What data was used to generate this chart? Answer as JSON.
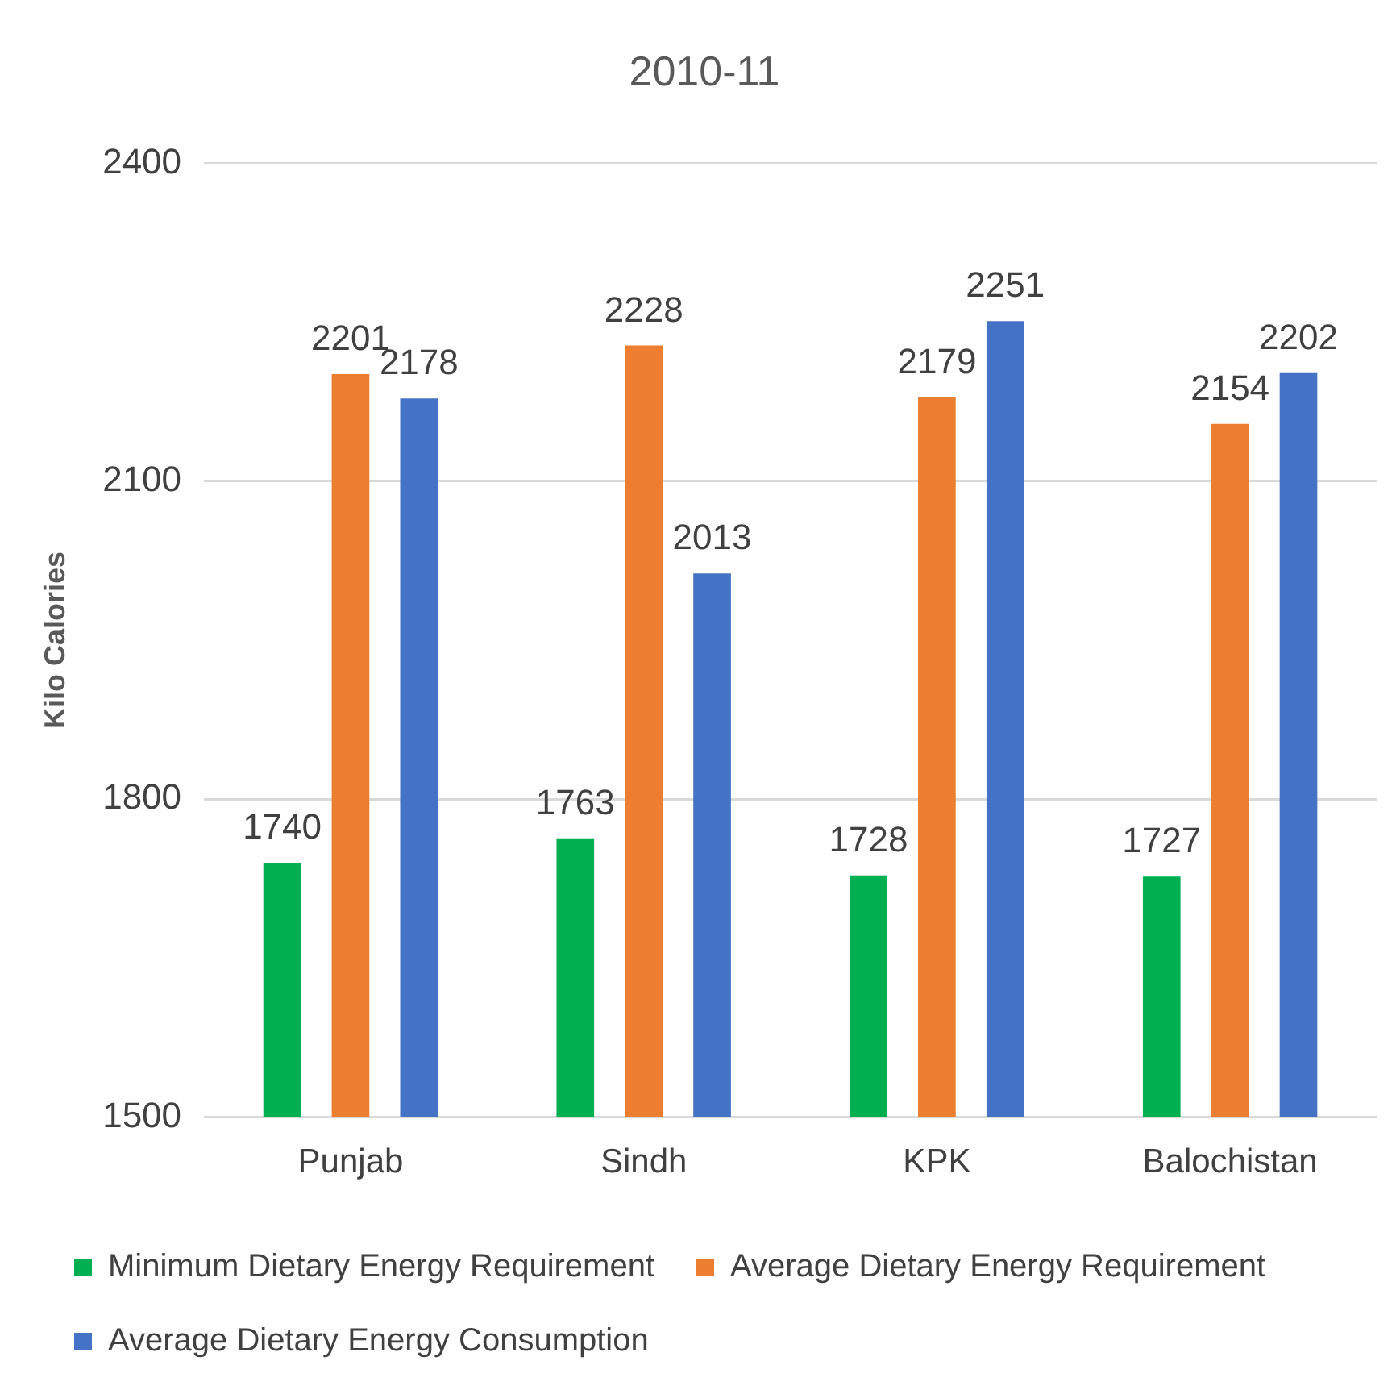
{
  "chart_data": {
    "type": "bar",
    "title": "2010-11",
    "ylabel": "Kilo Calories",
    "categories": [
      "Punjab",
      "Sindh",
      "KPK",
      "Balochistan"
    ],
    "series": [
      {
        "name": "Minimum Dietary Energy Requirement",
        "color": "#00b050",
        "values": [
          1740,
          1763,
          1728,
          1727
        ]
      },
      {
        "name": "Average Dietary Energy Requirement",
        "color": "#ed7d31",
        "values": [
          2201,
          2228,
          2179,
          2154
        ]
      },
      {
        "name": "Average Dietary Energy Consumption",
        "color": "#4472c4",
        "values": [
          2178,
          2013,
          2251,
          2202
        ]
      }
    ],
    "ylim": [
      1500,
      2400
    ],
    "yticks": [
      1500,
      1800,
      2100,
      2400
    ],
    "grid": "y",
    "legend": "bottom",
    "data_labels": true
  }
}
